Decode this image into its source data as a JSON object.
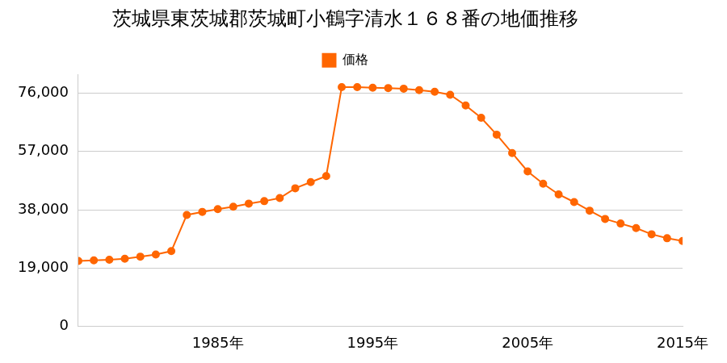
{
  "chart_data": {
    "type": "line",
    "title": "茨城県東茨城郡茨城町小鶴字清水１６８番の地価推移",
    "x": [
      1976,
      1977,
      1978,
      1979,
      1980,
      1981,
      1982,
      1983,
      1984,
      1985,
      1986,
      1987,
      1988,
      1989,
      1990,
      1991,
      1992,
      1993,
      1994,
      1995,
      1996,
      1997,
      1998,
      1999,
      2000,
      2001,
      2002,
      2003,
      2004,
      2005,
      2006,
      2007,
      2008,
      2009,
      2010,
      2011,
      2012,
      2013,
      2014,
      2015
    ],
    "series": [
      {
        "name": "価格",
        "color": "#ff6600",
        "marker": "circle",
        "values": [
          21300,
          21500,
          21700,
          22000,
          22700,
          23400,
          24500,
          36300,
          37300,
          38200,
          39000,
          40000,
          40800,
          41800,
          45000,
          47000,
          49000,
          78000,
          78000,
          77800,
          77700,
          77500,
          77000,
          76500,
          75500,
          72000,
          68000,
          62500,
          56500,
          50500,
          46500,
          43000,
          40500,
          37700,
          35000,
          33500,
          32000,
          30000,
          28700,
          27800
        ]
      }
    ],
    "xlim": [
      1976,
      2015
    ],
    "xticks": [
      {
        "value": 1985,
        "label": "1985年"
      },
      {
        "value": 1995,
        "label": "1995年"
      },
      {
        "value": 2005,
        "label": "2005年"
      },
      {
        "value": 2015,
        "label": "2015年"
      }
    ],
    "ylim": [
      0,
      82000
    ],
    "yticks": [
      0,
      {
        "value": 19000,
        "label": "19,000"
      },
      {
        "value": 38000,
        "label": "38,000"
      },
      {
        "value": 57000,
        "label": "57,000"
      },
      {
        "value": 76000,
        "label": "76,000"
      }
    ],
    "grid": true,
    "legend": "top"
  }
}
